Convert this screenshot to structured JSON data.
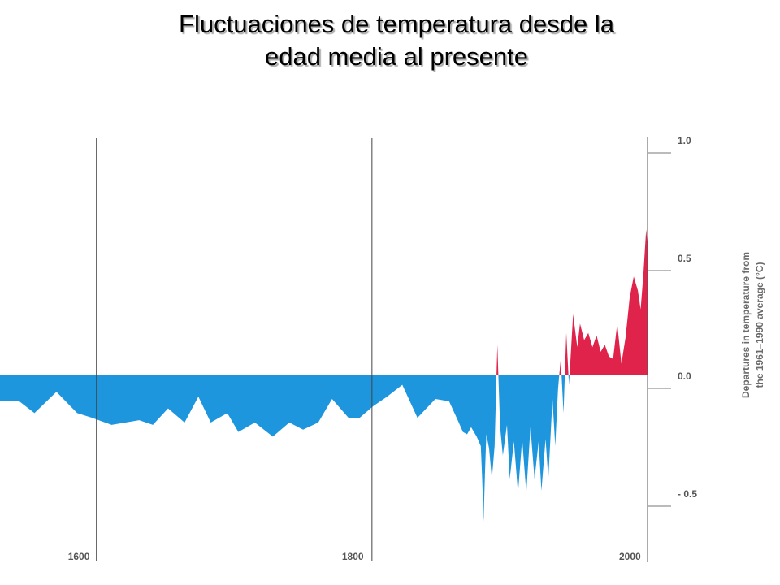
{
  "title_line1": "Fluctuaciones de temperatura desde la",
  "title_line2": "edad media al presente",
  "chart_data": {
    "type": "area",
    "title": "Fluctuaciones de temperatura desde la edad media al presente",
    "ylabel_line1": "Departures in temperature from",
    "ylabel_line2": "the 1961–1990 average (°C)",
    "xlabel": "",
    "xlim": [
      1530,
      2000
    ],
    "ylim": [
      -0.7,
      1.0
    ],
    "x_ticks": [
      {
        "value": 1600,
        "label": "1600"
      },
      {
        "value": 1800,
        "label": "1800"
      },
      {
        "value": 2000,
        "label": "2000"
      }
    ],
    "y_ticks": [
      {
        "value": 1.0,
        "label": "1.0"
      },
      {
        "value": 0.5,
        "label": "0.5"
      },
      {
        "value": 0.0,
        "label": "0.0"
      },
      {
        "value": -0.5,
        "label": "- 0.5"
      }
    ],
    "grid": "vertical lines at 1600, 1800, 2000",
    "colors": {
      "positive": "#e0234a",
      "negative": "#1e96de",
      "axis": "#555555"
    },
    "x": [
      1530,
      1544,
      1555,
      1571,
      1586,
      1597,
      1611,
      1631,
      1641,
      1652,
      1664,
      1674,
      1683,
      1695,
      1703,
      1715,
      1728,
      1740,
      1750,
      1761,
      1771,
      1783,
      1791,
      1801,
      1811,
      1822,
      1833,
      1846,
      1856,
      1863,
      1866,
      1869,
      1872,
      1876,
      1879,
      1880,
      1881,
      1882,
      1883,
      1885,
      1887,
      1889,
      1891,
      1893,
      1895,
      1898,
      1900,
      1903,
      1906,
      1909,
      1912,
      1915,
      1918,
      1921,
      1923,
      1926,
      1928,
      1931,
      1933,
      1935,
      1937,
      1939,
      1941,
      1943,
      1946,
      1949,
      1951,
      1954,
      1957,
      1960,
      1963,
      1966,
      1969,
      1972,
      1975,
      1978,
      1981,
      1984,
      1987,
      1990,
      1993,
      1995,
      1997,
      1999,
      2000
    ],
    "y": [
      -0.11,
      -0.11,
      -0.16,
      -0.07,
      -0.16,
      -0.18,
      -0.21,
      -0.19,
      -0.21,
      -0.14,
      -0.2,
      -0.09,
      -0.2,
      -0.16,
      -0.24,
      -0.2,
      -0.26,
      -0.2,
      -0.23,
      -0.2,
      -0.1,
      -0.18,
      -0.18,
      -0.13,
      -0.09,
      -0.04,
      -0.18,
      -0.1,
      -0.11,
      -0.2,
      -0.24,
      -0.25,
      -0.22,
      -0.26,
      -0.3,
      -0.44,
      -0.62,
      -0.42,
      -0.25,
      -0.31,
      -0.44,
      -0.3,
      0.13,
      -0.22,
      -0.34,
      -0.21,
      -0.44,
      -0.28,
      -0.5,
      -0.27,
      -0.5,
      -0.22,
      -0.44,
      -0.28,
      -0.49,
      -0.27,
      -0.44,
      -0.1,
      -0.3,
      -0.06,
      0.07,
      -0.16,
      0.18,
      -0.04,
      0.26,
      0.12,
      0.22,
      0.15,
      0.18,
      0.12,
      0.17,
      0.1,
      0.13,
      0.08,
      0.07,
      0.22,
      0.05,
      0.16,
      0.33,
      0.42,
      0.36,
      0.28,
      0.43,
      0.62,
      0.55
    ]
  }
}
